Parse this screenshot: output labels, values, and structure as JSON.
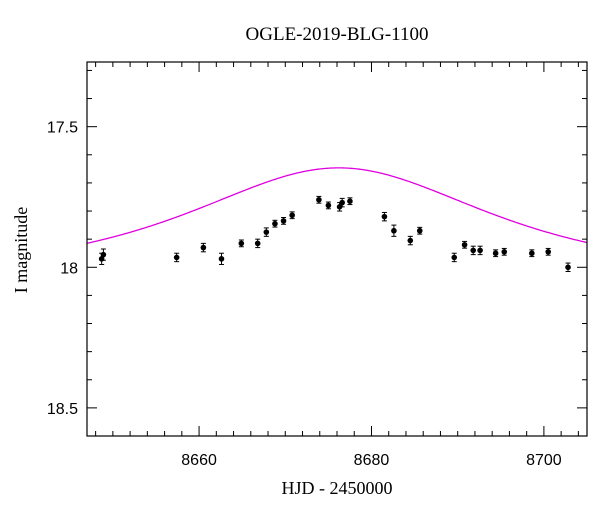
{
  "chart_data": {
    "type": "scatter",
    "title": "OGLE-2019-BLG-1100",
    "xlabel": "HJD - 2450000",
    "ylabel": "I magnitude",
    "xlim": [
      8647,
      8705
    ],
    "ylim": [
      18.6,
      17.27
    ],
    "y_inverted": true,
    "grid": false,
    "x_ticks": [
      {
        "value": 8660,
        "label": "8660"
      },
      {
        "value": 8680,
        "label": "8680"
      },
      {
        "value": 8700,
        "label": "8700"
      }
    ],
    "y_ticks": [
      {
        "value": 17.5,
        "label": "17.5"
      },
      {
        "value": 18,
        "label": "18"
      },
      {
        "value": 18.5,
        "label": "18.5"
      }
    ],
    "x_minor_step": 2,
    "y_minor_step": 0.1,
    "colors": {
      "points": "#000000",
      "model": "#e000e0",
      "axes": "#000000"
    },
    "series": [
      {
        "kind": "points_with_errorbars",
        "x": [
          8648.7,
          8648.9,
          8657.4,
          8660.5,
          8662.6,
          8664.9,
          8666.8,
          8667.8,
          8668.8,
          8669.8,
          8670.8,
          8673.9,
          8675.0,
          8676.3,
          8676.6,
          8677.5,
          8681.5,
          8682.6,
          8684.5,
          8685.6,
          8689.6,
          8690.8,
          8691.8,
          8692.6,
          8694.4,
          8695.4,
          8698.6,
          8700.5,
          8702.8
        ],
        "y": [
          17.97,
          17.955,
          17.965,
          17.93,
          17.97,
          17.915,
          17.915,
          17.875,
          17.845,
          17.835,
          17.815,
          17.76,
          17.78,
          17.785,
          17.77,
          17.765,
          17.82,
          17.87,
          17.905,
          17.87,
          17.965,
          17.92,
          17.94,
          17.94,
          17.95,
          17.945,
          17.95,
          17.945,
          18.0
        ],
        "yerr": [
          0.02,
          0.02,
          0.015,
          0.015,
          0.02,
          0.012,
          0.015,
          0.015,
          0.012,
          0.012,
          0.012,
          0.012,
          0.012,
          0.015,
          0.015,
          0.012,
          0.015,
          0.02,
          0.015,
          0.012,
          0.015,
          0.012,
          0.015,
          0.015,
          0.012,
          0.012,
          0.012,
          0.012,
          0.015
        ]
      },
      {
        "kind": "model_curve",
        "t0": 8676.2,
        "tE": 22,
        "u0": 0.9,
        "i_base": 18.03
      }
    ]
  }
}
